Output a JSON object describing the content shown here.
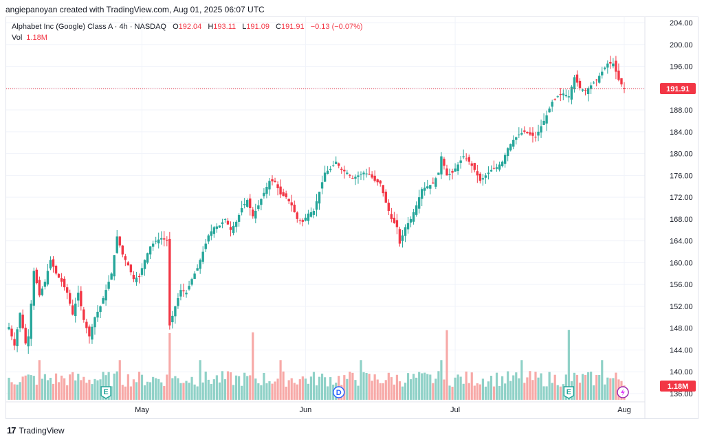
{
  "caption": "angiepanoyan created with TradingView.com, Aug 01, 2025 06:07 UTC",
  "legend": {
    "title": "Alphabet Inc (Google) Class A · 4h · NASDAQ",
    "o_label": "O",
    "o_value": "192.04",
    "h_label": "H",
    "h_value": "193.11",
    "l_label": "L",
    "l_value": "191.09",
    "c_label": "C",
    "c_value": "191.91",
    "change": "−0.13 (−0.07%)",
    "vol_label": "Vol",
    "vol_value": "1.18M"
  },
  "footer": {
    "brand": "TradingView",
    "logo_glyph": "17"
  },
  "colors": {
    "up": "#26a69a",
    "down": "#f23645",
    "up_vol": "#8fd1c7",
    "down_vol": "#f7a9a7",
    "grid": "#f0f3fa"
  },
  "chart_data": {
    "type": "candlestick",
    "symbol": "Alphabet Inc (Google) Class A",
    "interval": "4h",
    "exchange": "NASDAQ",
    "y_ticks": [
      "204.00",
      "200.00",
      "196.00",
      "192.00",
      "188.00",
      "184.00",
      "180.00",
      "176.00",
      "172.00",
      "168.00",
      "164.00",
      "160.00",
      "156.00",
      "152.00",
      "148.00",
      "144.00",
      "140.00",
      "136.00"
    ],
    "ylim": [
      134.5,
      205.2
    ],
    "x_ticks": [
      {
        "label": "May",
        "index": 48
      },
      {
        "label": "Jun",
        "index": 107
      },
      {
        "label": "Jul",
        "index": 161
      },
      {
        "label": "Aug",
        "index": 222
      }
    ],
    "last_price": {
      "value": 191.91,
      "label": "191.91"
    },
    "volume_label": "1.18M",
    "events": [
      {
        "glyph": "E",
        "index": 35,
        "kind": "earnings"
      },
      {
        "glyph": "D",
        "index": 119,
        "kind": "dividend"
      },
      {
        "glyph": "E",
        "index": 202,
        "kind": "earnings"
      }
    ],
    "anchors": [
      [
        0,
        148.2
      ],
      [
        2,
        144.8
      ],
      [
        4,
        150.8
      ],
      [
        6,
        145.2
      ],
      [
        7,
        146.5
      ],
      [
        9,
        158.5
      ],
      [
        11,
        154.0
      ],
      [
        13,
        156.5
      ],
      [
        15,
        160.5
      ],
      [
        17,
        158.0
      ],
      [
        19,
        156.5
      ],
      [
        21,
        154.5
      ],
      [
        23,
        150.5
      ],
      [
        25,
        154.5
      ],
      [
        27,
        149.5
      ],
      [
        29,
        146.5
      ],
      [
        31,
        150.0
      ],
      [
        33,
        152.0
      ],
      [
        35,
        155.0
      ],
      [
        37,
        158.0
      ],
      [
        39,
        164.8
      ],
      [
        41,
        161.5
      ],
      [
        43,
        159.5
      ],
      [
        45,
        157.0
      ],
      [
        47,
        157.5
      ],
      [
        49,
        160.5
      ],
      [
        51,
        163.0
      ],
      [
        53,
        164.0
      ],
      [
        55,
        164.5
      ],
      [
        57,
        164.0
      ],
      [
        58,
        148.5
      ],
      [
        60,
        152.0
      ],
      [
        62,
        155.0
      ],
      [
        64,
        154.5
      ],
      [
        66,
        157.0
      ],
      [
        68,
        159.0
      ],
      [
        70,
        162.0
      ],
      [
        72,
        165.0
      ],
      [
        74,
        166.5
      ],
      [
        76,
        166.8
      ],
      [
        78,
        168.0
      ],
      [
        80,
        166.0
      ],
      [
        82,
        167.5
      ],
      [
        84,
        170.0
      ],
      [
        86,
        171.5
      ],
      [
        88,
        168.5
      ],
      [
        90,
        170.5
      ],
      [
        92,
        172.8
      ],
      [
        94,
        175.0
      ],
      [
        96,
        174.8
      ],
      [
        98,
        172.5
      ],
      [
        100,
        172.0
      ],
      [
        102,
        170.5
      ],
      [
        104,
        168.0
      ],
      [
        106,
        167.5
      ],
      [
        108,
        169.0
      ],
      [
        110,
        169.5
      ],
      [
        112,
        173.0
      ],
      [
        114,
        176.5
      ],
      [
        116,
        177.2
      ],
      [
        118,
        178.5
      ],
      [
        120,
        177.0
      ],
      [
        122,
        176.5
      ],
      [
        124,
        175.5
      ],
      [
        126,
        176.0
      ],
      [
        128,
        176.5
      ],
      [
        130,
        176.2
      ],
      [
        132,
        175.0
      ],
      [
        134,
        174.5
      ],
      [
        136,
        171.0
      ],
      [
        138,
        168.0
      ],
      [
        140,
        166.5
      ],
      [
        141,
        163.5
      ],
      [
        143,
        166.5
      ],
      [
        145,
        168.0
      ],
      [
        147,
        170.5
      ],
      [
        149,
        173.5
      ],
      [
        151,
        174.0
      ],
      [
        153,
        174.5
      ],
      [
        155,
        176.5
      ],
      [
        156,
        179.5
      ],
      [
        158,
        176.0
      ],
      [
        160,
        176.5
      ],
      [
        162,
        178.0
      ],
      [
        164,
        179.5
      ],
      [
        166,
        178.5
      ],
      [
        168,
        177.0
      ],
      [
        170,
        175.0
      ],
      [
        172,
        176.0
      ],
      [
        174,
        177.0
      ],
      [
        176,
        177.5
      ],
      [
        178,
        178.5
      ],
      [
        180,
        181.0
      ],
      [
        182,
        182.5
      ],
      [
        184,
        183.5
      ],
      [
        186,
        184.0
      ],
      [
        188,
        183.5
      ],
      [
        190,
        183.0
      ],
      [
        192,
        185.0
      ],
      [
        194,
        187.0
      ],
      [
        196,
        189.5
      ],
      [
        198,
        190.5
      ],
      [
        200,
        191.0
      ],
      [
        202,
        190.5
      ],
      [
        204,
        194.0
      ],
      [
        206,
        192.0
      ],
      [
        208,
        191.5
      ],
      [
        210,
        192.5
      ],
      [
        212,
        193.5
      ],
      [
        214,
        195.0
      ],
      [
        216,
        196.5
      ],
      [
        218,
        196.5
      ],
      [
        220,
        193.5
      ],
      [
        222,
        191.91
      ]
    ],
    "candle_count": 223
  }
}
